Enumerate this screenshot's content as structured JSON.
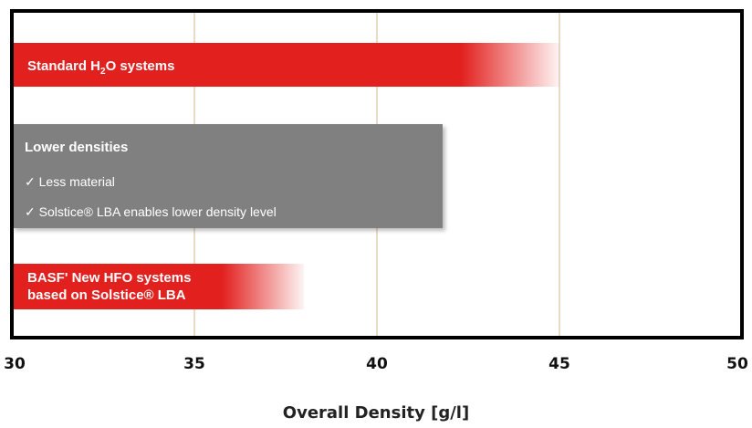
{
  "chart_data": {
    "type": "bar",
    "orientation": "horizontal",
    "xlabel": "Overall Density [g/l]",
    "xlim": [
      30,
      50
    ],
    "xticks": [
      30,
      35,
      40,
      45,
      50
    ],
    "grid": "vertical",
    "bars": [
      {
        "label_parts": [
          "Standard H",
          "2",
          "O systems"
        ],
        "value": 45,
        "color": "#e2201e"
      },
      {
        "label_lines": [
          "BASF' New HFO systems",
          "based on Solstice® LBA"
        ],
        "value": 38,
        "color": "#e2201e"
      }
    ],
    "annotation_box": {
      "value": 41.8,
      "color": "#808080",
      "title": "Lower densities",
      "items": [
        "✓  Less material",
        "✓  Solstice® LBA enables lower density level"
      ]
    }
  }
}
